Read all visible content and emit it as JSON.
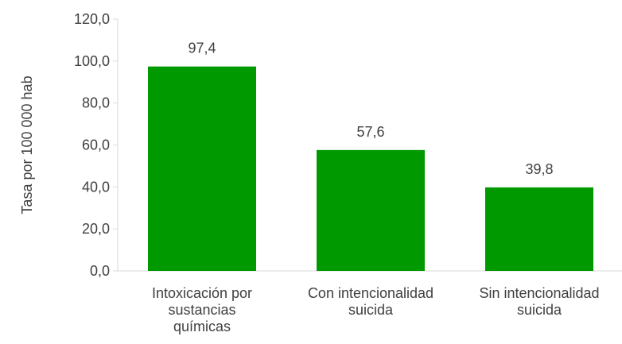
{
  "chart_data": {
    "type": "bar",
    "title": "",
    "xlabel": "",
    "ylabel": "Tasa  por 100 000 hab",
    "categories": [
      [
        "Intoxicación por",
        "sustancias",
        "químicas"
      ],
      [
        "Con intencionalidad",
        "suicida"
      ],
      [
        "Sin intencionalidad",
        "suicida"
      ]
    ],
    "values": [
      97.4,
      57.6,
      39.8
    ],
    "data_labels": [
      "97,4",
      "57,6",
      "39,8"
    ],
    "ylim": [
      0,
      120
    ],
    "yticks": [
      0,
      20,
      40,
      60,
      80,
      100,
      120
    ],
    "ytick_labels": [
      "0,0",
      "20,0",
      "40,0",
      "60,0",
      "80,0",
      "100,0",
      "120,0"
    ],
    "grid": false,
    "legend": "none",
    "bar_color": "#009900",
    "axis_color": "#d9d9d9"
  }
}
